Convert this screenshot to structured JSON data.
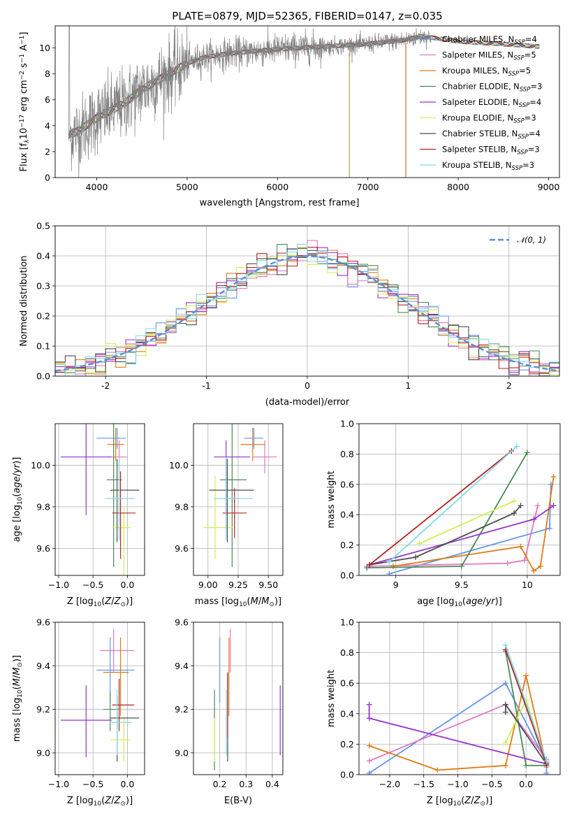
{
  "title": "PLATE=0879, MJD=52365, FIBERID=0147, z=0.035",
  "series_legend": [
    {
      "label": "Chabrier MILES, N",
      "sub": "SSP",
      "val": "=4",
      "color": "#6495ed"
    },
    {
      "label": "Salpeter MILES, N",
      "sub": "SSP",
      "val": "=5",
      "color": "#e377c2"
    },
    {
      "label": "Kroupa MILES, N",
      "sub": "SSP",
      "val": "=5",
      "color": "#e07a12"
    },
    {
      "label": "Chabrier ELODIE, N",
      "sub": "SSP",
      "val": "=3",
      "color": "#4a8a55"
    },
    {
      "label": "Salpeter ELODIE, N",
      "sub": "SSP",
      "val": "=4",
      "color": "#9932cc"
    },
    {
      "label": "Kroupa ELODIE, N",
      "sub": "SSP",
      "val": "=3",
      "color": "#d2f050"
    },
    {
      "label": "Chabrier STELIB, N",
      "sub": "SSP",
      "val": "=4",
      "color": "#4d4d4d"
    },
    {
      "label": "Salpeter STELIB, N",
      "sub": "SSP",
      "val": "=3",
      "color": "#b22222"
    },
    {
      "label": "Kroupa STELIB, N",
      "sub": "SSP",
      "val": "=3",
      "color": "#7fdbe6"
    }
  ],
  "chart_data": [
    {
      "type": "line",
      "panel": "spectrum",
      "xlabel": "wavelength [Angstrom, rest frame]",
      "ylabel": "Flux [f",
      "ylabel_parts": [
        "Flux [f",
        "λ",
        "10",
        "−17",
        " erg cm",
        "−2",
        " s",
        "−1",
        " A",
        "−1",
        "]"
      ],
      "xlim": [
        3540,
        9120
      ],
      "ylim": [
        0,
        11.7
      ],
      "xticks": [
        4000,
        5000,
        6000,
        7000,
        8000,
        9000
      ],
      "yticks": [
        0,
        2,
        4,
        6,
        8,
        10
      ],
      "grid": false,
      "legend_position": "right",
      "data_trend": {
        "x": [
          3690,
          3800,
          4000,
          4300,
          4500,
          4800,
          5000,
          5200,
          5500,
          6000,
          6500,
          7000,
          7400,
          7600,
          8000,
          8500,
          8900
        ],
        "y": [
          3.3,
          3.6,
          4.6,
          5.7,
          6.8,
          8.0,
          8.8,
          9.3,
          9.6,
          9.9,
          10.1,
          10.3,
          10.6,
          10.9,
          10.5,
          10.3,
          10.1
        ]
      }
    },
    {
      "type": "bar",
      "panel": "residual-histogram",
      "xlabel": "(data-model)/error",
      "ylabel": "Normed distribution",
      "xlim": [
        -2.5,
        2.5
      ],
      "ylim": [
        0,
        0.5
      ],
      "xticks": [
        -2,
        -1,
        0,
        1,
        2
      ],
      "yticks": [
        0.0,
        0.1,
        0.2,
        0.3,
        0.4,
        0.5
      ],
      "grid": true,
      "legend": "𝒩(0, 1)",
      "legend_position": "top-right",
      "bin_width": 0.1,
      "bin_start": -2.5
    },
    {
      "type": "scatter",
      "panel": "age-vs-Z",
      "xlabel": "Z [log10(Z/Z⊙)]",
      "ylabel": "age  [log10(age/yr)]",
      "xlim": [
        -1.05,
        0.25
      ],
      "ylim": [
        9.47,
        10.2
      ],
      "xticks": [
        -1.0,
        -0.5,
        0.0
      ],
      "xticklabels": [
        "−1.0",
        "−0.5",
        "0.0"
      ],
      "yticks": [
        9.6,
        9.8,
        10.0
      ],
      "grid": true,
      "points": [
        {
          "x": -0.15,
          "y": 10.13,
          "xerr": [
            0.3,
            0.13
          ],
          "yerr": [
            0.05,
            0.05
          ]
        },
        {
          "x": -0.12,
          "y": 10.04,
          "xerr": [
            0.15,
            0.12
          ],
          "yerr": [
            0.08,
            0.08
          ]
        },
        {
          "x": -0.17,
          "y": 10.1,
          "xerr": [
            0.12,
            0.12
          ],
          "yerr": [
            0.08,
            0.08
          ]
        },
        {
          "x": -0.2,
          "y": 9.93,
          "xerr": [
            0.1,
            0.12
          ],
          "yerr": [
            0.42,
            0.42
          ]
        },
        {
          "x": -0.6,
          "y": 10.04,
          "xerr": [
            0.37,
            0.37
          ],
          "yerr": [
            0.28,
            0.28
          ]
        },
        {
          "x": -0.05,
          "y": 9.7,
          "xerr": [
            0.17,
            0.1
          ],
          "yerr": [
            0.35,
            0.1
          ]
        },
        {
          "x": -0.15,
          "y": 9.88,
          "xerr": [
            0.1,
            0.32
          ],
          "yerr": [
            0.25,
            0.15
          ]
        },
        {
          "x": -0.1,
          "y": 9.77,
          "xerr": [
            0.12,
            0.22
          ],
          "yerr": [
            0.22,
            0.2
          ]
        },
        {
          "x": -0.12,
          "y": 9.84,
          "xerr": [
            0.2,
            0.22
          ],
          "yerr": [
            0.2,
            0.2
          ]
        }
      ]
    },
    {
      "type": "scatter",
      "panel": "age-vs-mass",
      "xlabel": "mass [log10(M/M⊙)]",
      "ylabel": "",
      "xlim": [
        8.88,
        9.62
      ],
      "ylim": [
        9.47,
        10.2
      ],
      "xticks": [
        9.0,
        9.25,
        9.5
      ],
      "xticklabels": [
        "9.00",
        "9.25",
        "9.50"
      ],
      "yticks": [
        9.6,
        9.8,
        10.0
      ],
      "grid": true,
      "points": [
        {
          "x": 9.38,
          "y": 10.13,
          "xerr": [
            0.08,
            0.08
          ],
          "yerr": [
            0.05,
            0.05
          ]
        },
        {
          "x": 9.47,
          "y": 10.04,
          "xerr": [
            0.1,
            0.1
          ],
          "yerr": [
            0.08,
            0.08
          ]
        },
        {
          "x": 9.37,
          "y": 10.1,
          "xerr": [
            0.1,
            0.1
          ],
          "yerr": [
            0.08,
            0.08
          ]
        },
        {
          "x": 9.2,
          "y": 9.93,
          "xerr": [
            0.1,
            0.12
          ],
          "yerr": [
            0.42,
            0.42
          ]
        },
        {
          "x": 9.15,
          "y": 10.04,
          "xerr": [
            0.1,
            0.2
          ],
          "yerr": [
            0.28,
            0.08
          ]
        },
        {
          "x": 9.06,
          "y": 9.7,
          "xerr": [
            0.1,
            0.15
          ],
          "yerr": [
            0.15,
            0.25
          ]
        },
        {
          "x": 9.16,
          "y": 9.88,
          "xerr": [
            0.15,
            0.22
          ],
          "yerr": [
            0.25,
            0.15
          ]
        },
        {
          "x": 9.22,
          "y": 9.77,
          "xerr": [
            0.1,
            0.1
          ],
          "yerr": [
            0.12,
            0.12
          ]
        },
        {
          "x": 9.15,
          "y": 9.84,
          "xerr": [
            0.1,
            0.22
          ],
          "yerr": [
            0.2,
            0.2
          ]
        }
      ]
    },
    {
      "type": "line",
      "panel": "mass-weight-vs-age",
      "xlabel": "age  [log10(age/yr)]",
      "ylabel": "mass weight",
      "xlim": [
        8.72,
        10.25
      ],
      "ylim": [
        0.0,
        1.0
      ],
      "xticks": [
        9.0,
        9.5,
        10.0
      ],
      "yticks": [
        0.0,
        0.2,
        0.4,
        0.6,
        0.8,
        1.0
      ],
      "grid": true,
      "series": [
        {
          "x": [
            8.95,
            10.17,
            10.18
          ],
          "y": [
            0.01,
            0.31,
            0.6
          ]
        },
        {
          "x": [
            8.78,
            9.85,
            9.98,
            10.08
          ],
          "y": [
            0.06,
            0.08,
            0.1,
            0.46
          ]
        },
        {
          "x": [
            8.98,
            9.95,
            10.05,
            10.1,
            10.2
          ],
          "y": [
            0.06,
            0.19,
            0.03,
            0.06,
            0.65
          ]
        },
        {
          "x": [
            8.78,
            9.5,
            10.0
          ],
          "y": [
            0.05,
            0.06,
            0.81
          ]
        },
        {
          "x": [
            8.8,
            10.05,
            10.2
          ],
          "y": [
            0.07,
            0.37,
            0.46
          ]
        },
        {
          "x": [
            9.18,
            9.9
          ],
          "y": [
            0.21,
            0.49
          ]
        },
        {
          "x": [
            8.8,
            9.15,
            9.9,
            9.95
          ],
          "y": [
            0.07,
            0.12,
            0.41,
            0.46
          ]
        },
        {
          "x": [
            8.8,
            9.88
          ],
          "y": [
            0.07,
            0.82
          ]
        },
        {
          "x": [
            8.95,
            9.92
          ],
          "y": [
            0.09,
            0.85
          ]
        }
      ]
    },
    {
      "type": "scatter",
      "panel": "mass-vs-Z",
      "xlabel": "Z [log10(Z/Z⊙)]",
      "ylabel": "mass [log10(M/M⊙)]",
      "xlim": [
        -1.05,
        0.25
      ],
      "ylim": [
        8.9,
        9.6
      ],
      "xticks": [
        -1.0,
        -0.5,
        0.0
      ],
      "xticklabels": [
        "−1.0",
        "−0.5",
        "0.0"
      ],
      "yticks": [
        9.0,
        9.2,
        9.4,
        9.6
      ],
      "grid": true,
      "points": [
        {
          "x": -0.25,
          "y": 9.38,
          "xerr": [
            0.2,
            0.35
          ],
          "yerr": [
            0.15,
            0.15
          ]
        },
        {
          "x": -0.2,
          "y": 9.47,
          "xerr": [
            0.2,
            0.3
          ],
          "yerr": [
            0.1,
            0.1
          ]
        },
        {
          "x": -0.1,
          "y": 9.37,
          "xerr": [
            0.25,
            0.12
          ],
          "yerr": [
            0.2,
            0.16
          ]
        },
        {
          "x": -0.25,
          "y": 9.2,
          "xerr": [
            0.1,
            0.12
          ],
          "yerr": [
            0.1,
            0.08
          ]
        },
        {
          "x": -0.6,
          "y": 9.15,
          "xerr": [
            0.37,
            0.37
          ],
          "yerr": [
            0.17,
            0.16
          ]
        },
        {
          "x": -0.05,
          "y": 9.06,
          "xerr": [
            0.2,
            0.1
          ],
          "yerr": [
            0.1,
            0.1
          ]
        },
        {
          "x": -0.15,
          "y": 9.16,
          "xerr": [
            0.1,
            0.32
          ],
          "yerr": [
            0.2,
            0.1
          ]
        },
        {
          "x": -0.12,
          "y": 9.22,
          "xerr": [
            0.1,
            0.22
          ],
          "yerr": [
            0.12,
            0.12
          ]
        },
        {
          "x": -0.15,
          "y": 9.14,
          "xerr": [
            0.1,
            0.22
          ],
          "yerr": [
            0.15,
            0.15
          ]
        }
      ]
    },
    {
      "type": "scatter",
      "panel": "mass-vs-EBV",
      "xlabel": "E(B-V)",
      "ylabel": "",
      "xlim": [
        0.1,
        0.44
      ],
      "ylim": [
        8.9,
        9.6
      ],
      "xticks": [
        0.2,
        0.3,
        0.4
      ],
      "yticks": [
        9.0,
        9.2,
        9.4,
        9.6
      ],
      "grid": true,
      "points": [
        {
          "x": 0.2,
          "y": 9.38,
          "xerr": [
            0,
            0
          ],
          "yerr": [
            0.15,
            0.15
          ]
        },
        {
          "x": 0.24,
          "y": 9.47,
          "xerr": [
            0,
            0
          ],
          "yerr": [
            0.1,
            0.1
          ]
        },
        {
          "x": 0.235,
          "y": 9.37,
          "xerr": [
            0,
            0
          ],
          "yerr": [
            0.2,
            0.16
          ]
        },
        {
          "x": 0.18,
          "y": 9.2,
          "xerr": [
            0,
            0
          ],
          "yerr": [
            0.28,
            0.09
          ]
        },
        {
          "x": 0.43,
          "y": 9.15,
          "xerr": [
            0,
            0
          ],
          "yerr": [
            0.16,
            0.16
          ]
        },
        {
          "x": 0.18,
          "y": 9.06,
          "xerr": [
            0,
            0
          ],
          "yerr": [
            0.1,
            0.1
          ]
        },
        {
          "x": 0.23,
          "y": 9.16,
          "xerr": [
            0,
            0
          ],
          "yerr": [
            0.2,
            0.2
          ]
        },
        {
          "x": 0.23,
          "y": 9.22,
          "xerr": [
            0,
            0
          ],
          "yerr": [
            0.15,
            0.15
          ]
        },
        {
          "x": 0.225,
          "y": 9.14,
          "xerr": [
            0,
            0
          ],
          "yerr": [
            0.15,
            0.15
          ]
        }
      ]
    },
    {
      "type": "line",
      "panel": "mass-weight-vs-Z",
      "xlabel": "Z [log10(Z/Z⊙)]",
      "ylabel": "mass weight",
      "xlim": [
        -2.45,
        0.5
      ],
      "ylim": [
        0.0,
        1.0
      ],
      "xticks": [
        -2.0,
        -1.5,
        -1.0,
        -0.5,
        0.0
      ],
      "xticklabels": [
        "−2.0",
        "−1.5",
        "−1.0",
        "−0.5",
        "0.0"
      ],
      "yticks": [
        0.0,
        0.2,
        0.4,
        0.6,
        0.8,
        1.0
      ],
      "grid": true,
      "series": [
        {
          "x": [
            -2.3,
            -0.3,
            0.3,
            0.3
          ],
          "y": [
            0.01,
            0.6,
            0.08,
            0.01
          ]
        },
        {
          "x": [
            -2.3,
            -0.3,
            0.3,
            0.3
          ],
          "y": [
            0.09,
            0.46,
            0.1,
            0.05
          ]
        },
        {
          "x": [
            -2.3,
            -1.3,
            -0.3,
            0.0,
            0.3
          ],
          "y": [
            0.19,
            0.03,
            0.06,
            0.65,
            0.06
          ]
        },
        {
          "x": [
            -0.3,
            0.0,
            0.3
          ],
          "y": [
            0.81,
            0.06,
            0.06
          ]
        },
        {
          "x": [
            -2.3,
            -2.3,
            0.3
          ],
          "y": [
            0.46,
            0.37,
            0.07
          ]
        },
        {
          "x": [
            -0.3,
            0.0,
            0.3
          ],
          "y": [
            0.21,
            0.49,
            0.07
          ]
        },
        {
          "x": [
            -0.3,
            -0.3,
            0.3
          ],
          "y": [
            0.41,
            0.46,
            0.07
          ]
        },
        {
          "x": [
            -0.3,
            0.3
          ],
          "y": [
            0.82,
            0.07
          ]
        },
        {
          "x": [
            -0.3,
            0.3
          ],
          "y": [
            0.85,
            0.09
          ]
        }
      ]
    }
  ]
}
